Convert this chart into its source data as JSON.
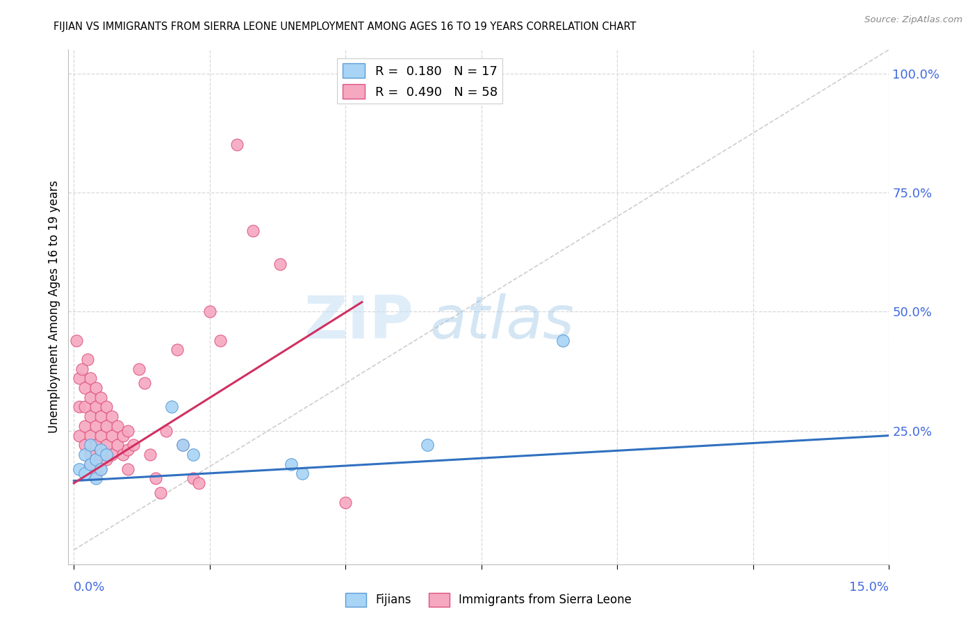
{
  "title": "FIJIAN VS IMMIGRANTS FROM SIERRA LEONE UNEMPLOYMENT AMONG AGES 16 TO 19 YEARS CORRELATION CHART",
  "source": "Source: ZipAtlas.com",
  "ylabel": "Unemployment Among Ages 16 to 19 years",
  "y_ticks_right": [
    "100.0%",
    "75.0%",
    "50.0%",
    "25.0%"
  ],
  "y_tick_vals": [
    1.0,
    0.75,
    0.5,
    0.25
  ],
  "xlim": [
    0.0,
    0.15
  ],
  "ylim": [
    0.0,
    1.05
  ],
  "fijian_color": "#A8D4F5",
  "sierra_leone_color": "#F5A8C0",
  "fijian_edge": "#5B9BD5",
  "sierra_leone_edge": "#E05080",
  "trend_fijian_color": "#3070C0",
  "trend_sierra_color": "#D03060",
  "diag_color": "#C8C8C8",
  "legend_fijian_R": "0.180",
  "legend_fijian_N": "17",
  "legend_sierra_R": "0.490",
  "legend_sierra_N": "58",
  "legend_label_fijian": "Fijians",
  "legend_label_sierra": "Immigrants from Sierra Leone",
  "watermark_zip": "ZIP",
  "watermark_atlas": "atlas",
  "background_color": "#ffffff",
  "grid_color": "#d8d8d8",
  "fijian_x": [
    0.001,
    0.002,
    0.002,
    0.003,
    0.003,
    0.004,
    0.004,
    0.005,
    0.005,
    0.006,
    0.018,
    0.02,
    0.022,
    0.04,
    0.042,
    0.065,
    0.09
  ],
  "fijian_y": [
    0.17,
    0.2,
    0.16,
    0.22,
    0.18,
    0.19,
    0.15,
    0.21,
    0.17,
    0.2,
    0.3,
    0.22,
    0.2,
    0.18,
    0.16,
    0.22,
    0.44
  ],
  "sierra_x": [
    0.0005,
    0.001,
    0.001,
    0.001,
    0.0015,
    0.002,
    0.002,
    0.002,
    0.002,
    0.0025,
    0.003,
    0.003,
    0.003,
    0.003,
    0.003,
    0.003,
    0.004,
    0.004,
    0.004,
    0.004,
    0.004,
    0.004,
    0.005,
    0.005,
    0.005,
    0.005,
    0.005,
    0.006,
    0.006,
    0.006,
    0.006,
    0.007,
    0.007,
    0.007,
    0.008,
    0.008,
    0.009,
    0.009,
    0.01,
    0.01,
    0.01,
    0.011,
    0.012,
    0.013,
    0.014,
    0.015,
    0.016,
    0.017,
    0.019,
    0.02,
    0.022,
    0.023,
    0.025,
    0.027,
    0.03,
    0.033,
    0.038,
    0.05
  ],
  "sierra_y": [
    0.44,
    0.36,
    0.3,
    0.24,
    0.38,
    0.34,
    0.3,
    0.26,
    0.22,
    0.4,
    0.36,
    0.32,
    0.28,
    0.24,
    0.2,
    0.18,
    0.34,
    0.3,
    0.26,
    0.22,
    0.18,
    0.16,
    0.32,
    0.28,
    0.24,
    0.2,
    0.17,
    0.3,
    0.26,
    0.22,
    0.19,
    0.28,
    0.24,
    0.2,
    0.26,
    0.22,
    0.24,
    0.2,
    0.25,
    0.21,
    0.17,
    0.22,
    0.38,
    0.35,
    0.2,
    0.15,
    0.12,
    0.25,
    0.42,
    0.22,
    0.15,
    0.14,
    0.5,
    0.44,
    0.85,
    0.67,
    0.6,
    0.1
  ],
  "fijian_trend_x": [
    0.0,
    0.15
  ],
  "fijian_trend_y": [
    0.145,
    0.24
  ],
  "sierra_trend_x": [
    0.0,
    0.053
  ],
  "sierra_trend_y": [
    0.14,
    0.52
  ]
}
